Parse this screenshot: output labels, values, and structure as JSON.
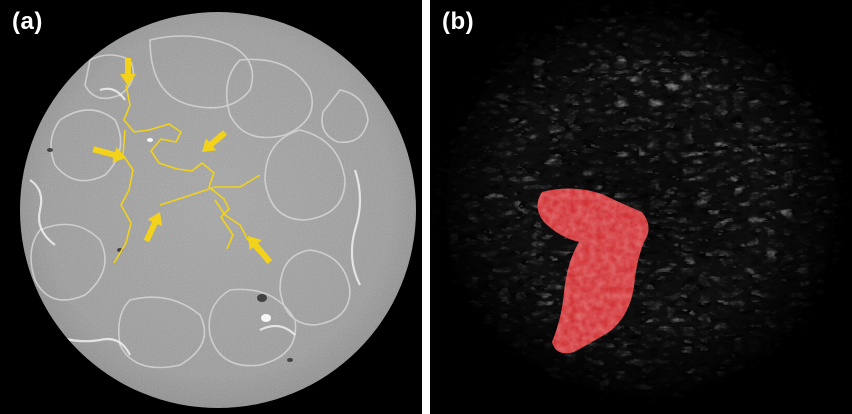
{
  "panels": [
    {
      "label": "(a)"
    },
    {
      "label": "(b)"
    }
  ],
  "colors": {
    "background": "#000000",
    "ct_gray": "#9a9a9a",
    "annotation_yellow": "#f2d21b",
    "highlight_red": "#e8282c"
  }
}
